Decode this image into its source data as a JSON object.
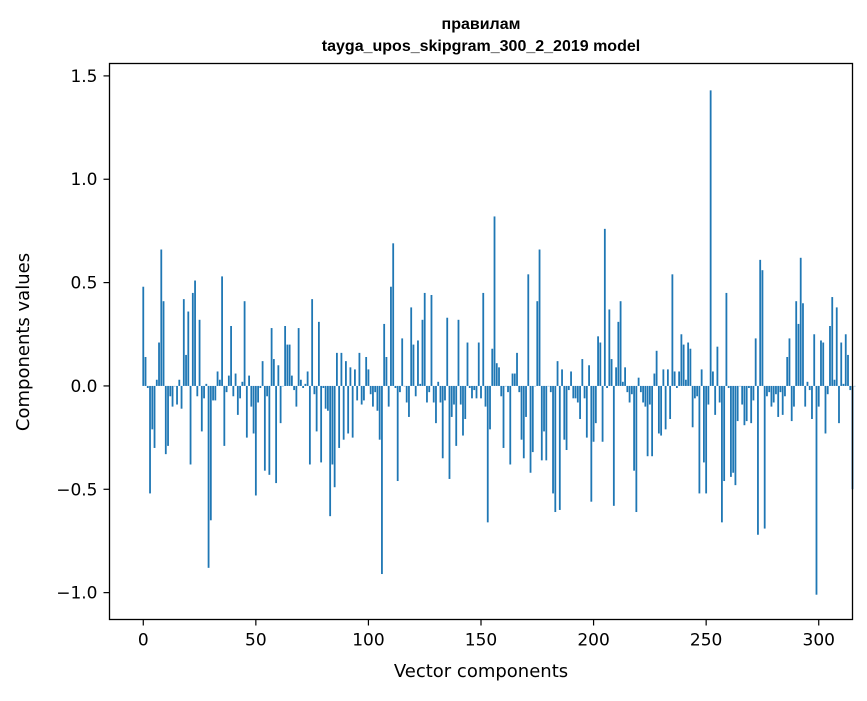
{
  "chart_data": {
    "type": "bar",
    "title": "правилам",
    "subtitle": "tayga_upos_skipgram_300_2_2019 model",
    "xlabel": "Vector components",
    "ylabel": "Components values",
    "xlim": [
      -15,
      315
    ],
    "ylim": [
      -1.13,
      1.56
    ],
    "x_ticks": [
      0,
      50,
      100,
      150,
      200,
      250,
      300
    ],
    "x_tick_labels": [
      "0",
      "50",
      "100",
      "150",
      "200",
      "250",
      "300"
    ],
    "y_ticks": [
      -1.0,
      -0.5,
      0.0,
      0.5,
      1.0,
      1.5
    ],
    "y_tick_labels": [
      "−1.0",
      "−0.5",
      "0.0",
      "0.5",
      "1.0",
      "1.5"
    ],
    "grid": false,
    "bar_color": "#1f77b4",
    "series": [
      {
        "values": [
          0.48,
          0.14,
          -0.01,
          -0.52,
          -0.21,
          -0.3,
          0.03,
          0.21,
          0.66,
          0.41,
          -0.33,
          -0.29,
          -0.05,
          -0.1,
          0.0,
          -0.09,
          0.03,
          -0.11,
          0.42,
          0.15,
          0.36,
          -0.38,
          0.45,
          0.51,
          -0.05,
          0.32,
          -0.22,
          -0.06,
          0.01,
          -0.88,
          -0.65,
          -0.07,
          -0.07,
          0.07,
          0.03,
          0.53,
          -0.29,
          -0.03,
          0.05,
          0.29,
          -0.05,
          0.06,
          -0.14,
          -0.06,
          0.02,
          0.41,
          -0.25,
          0.05,
          -0.1,
          -0.23,
          -0.53,
          -0.08,
          -0.01,
          0.12,
          -0.41,
          -0.05,
          -0.43,
          0.28,
          0.13,
          -0.47,
          0.1,
          -0.18,
          0.0,
          0.29,
          0.2,
          0.2,
          0.05,
          -0.02,
          -0.1,
          0.28,
          0.03,
          -0.01,
          0.01,
          0.07,
          -0.38,
          0.42,
          -0.04,
          -0.22,
          0.31,
          -0.37,
          -0.01,
          -0.11,
          -0.12,
          -0.63,
          -0.38,
          -0.49,
          0.16,
          -0.3,
          0.16,
          -0.26,
          0.12,
          -0.23,
          0.09,
          -0.25,
          0.08,
          -0.07,
          0.16,
          -0.09,
          -0.07,
          0.14,
          0.08,
          -0.04,
          -0.1,
          -0.03,
          -0.12,
          -0.26,
          -0.91,
          0.3,
          0.14,
          -0.1,
          0.48,
          0.69,
          -0.01,
          -0.46,
          -0.03,
          0.23,
          0.0,
          -0.08,
          -0.15,
          0.38,
          0.2,
          -0.05,
          0.22,
          0.01,
          0.32,
          0.45,
          -0.08,
          -0.03,
          0.44,
          -0.08,
          -0.18,
          0.02,
          -0.08,
          -0.35,
          -0.07,
          0.33,
          -0.45,
          -0.15,
          -0.09,
          -0.29,
          0.32,
          -0.09,
          -0.24,
          -0.16,
          0.21,
          -0.01,
          -0.06,
          -0.02,
          -0.06,
          0.21,
          -0.06,
          0.45,
          -0.1,
          -0.66,
          -0.21,
          0.18,
          0.82,
          0.11,
          0.09,
          -0.05,
          -0.3,
          0.0,
          -0.03,
          -0.38,
          0.06,
          0.06,
          0.16,
          -0.03,
          -0.26,
          -0.35,
          -0.15,
          0.54,
          -0.42,
          -0.32,
          0.0,
          0.41,
          0.66,
          -0.36,
          -0.22,
          -0.36,
          0.0,
          -0.03,
          -0.52,
          -0.61,
          0.12,
          -0.6,
          0.08,
          -0.26,
          -0.31,
          -0.02,
          0.07,
          -0.06,
          -0.06,
          -0.08,
          -0.16,
          0.13,
          -0.06,
          -0.25,
          0.1,
          -0.56,
          -0.27,
          -0.18,
          0.24,
          0.21,
          -0.27,
          0.76,
          -0.01,
          0.37,
          0.13,
          -0.58,
          0.09,
          0.31,
          0.41,
          0.02,
          0.09,
          -0.03,
          -0.08,
          -0.04,
          -0.41,
          -0.61,
          0.04,
          -0.03,
          -0.08,
          -0.1,
          -0.34,
          -0.09,
          -0.34,
          0.06,
          0.17,
          -0.23,
          -0.24,
          0.08,
          -0.21,
          0.08,
          -0.16,
          0.54,
          0.07,
          -0.01,
          0.07,
          0.25,
          0.2,
          0.03,
          0.21,
          0.18,
          -0.2,
          -0.06,
          -0.05,
          -0.52,
          0.08,
          -0.37,
          -0.52,
          -0.09,
          1.43,
          0.07,
          -0.14,
          0.19,
          -0.08,
          -0.66,
          -0.46,
          0.45,
          -0.01,
          -0.44,
          -0.42,
          -0.48,
          -0.17,
          0.0,
          -0.09,
          -0.19,
          -0.17,
          -0.01,
          -0.18,
          -0.07,
          0.23,
          -0.72,
          0.61,
          0.56,
          -0.69,
          -0.05,
          -0.03,
          -0.1,
          -0.08,
          -0.04,
          -0.15,
          -0.03,
          -0.14,
          -0.05,
          0.14,
          0.23,
          -0.17,
          -0.1,
          0.41,
          0.3,
          0.62,
          0.4,
          -0.1,
          0.02,
          -0.02,
          -0.16,
          0.25,
          -1.01,
          -0.1,
          0.22,
          0.21,
          -0.23,
          -0.04,
          0.29,
          0.43,
          0.03,
          0.38,
          -0.18,
          0.21,
          0.01,
          0.25,
          0.15,
          -0.02,
          -0.5,
          0.0
        ]
      }
    ]
  }
}
